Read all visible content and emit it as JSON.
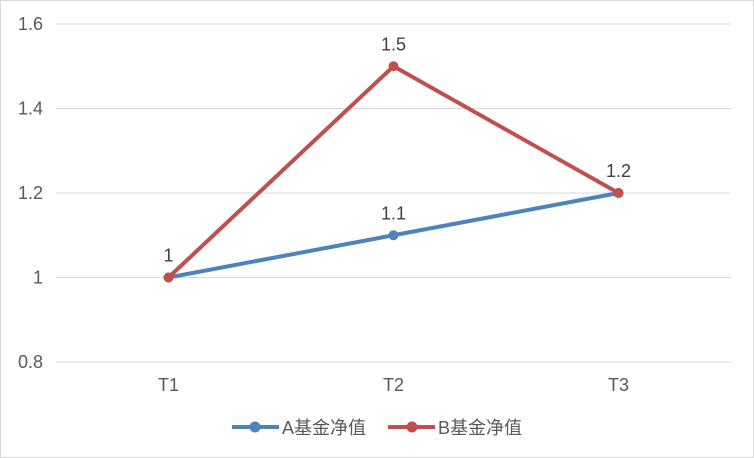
{
  "chart": {
    "background_color": "#ffffff",
    "frame_border_color": "#d9d9d9",
    "gridline_color": "#d9d9d9",
    "axis_label_color": "#595959",
    "data_label_color": "#404040",
    "legend_text_color": "#595959"
  },
  "chart_data": {
    "type": "line",
    "title": "",
    "xlabel": "",
    "ylabel": "",
    "categories": [
      "T1",
      "T2",
      "T3"
    ],
    "series": [
      {
        "name": "A基金净值",
        "values": [
          1,
          1.1,
          1.2
        ],
        "color": "#4F81BD",
        "marker": "circle"
      },
      {
        "name": "B基金净值",
        "values": [
          1,
          1.5,
          1.2
        ],
        "color": "#C0504D",
        "marker": "circle"
      }
    ],
    "y_ticks": [
      0.8,
      1,
      1.2,
      1.4,
      1.6
    ],
    "ylim": [
      0.8,
      1.6
    ],
    "grid": true,
    "data_labels": true,
    "legend_position": "bottom",
    "visible_data_labels": [
      "1",
      "1.1",
      "1.5",
      "1.2"
    ]
  }
}
